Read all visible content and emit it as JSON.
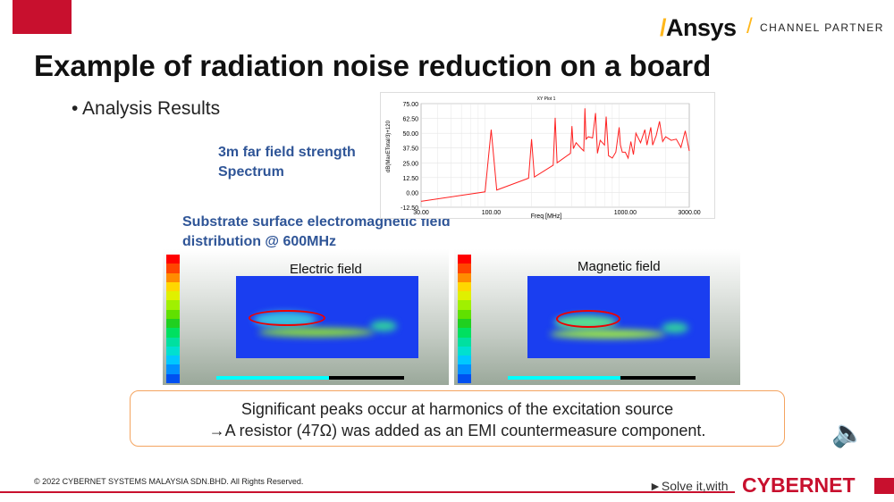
{
  "header": {
    "brand": "Ansys",
    "partner": "CHANNEL PARTNER",
    "title": "Example of radiation noise reduction on a board"
  },
  "bullet": "Analysis Results",
  "far_field_label_1": "3m far field strength",
  "far_field_label_2": "Spectrum",
  "substrate_label_1": "Substrate surface electromagnetic field",
  "substrate_label_2": "distribution @ 600MHz",
  "electric_label": "Electric field",
  "magnetic_label": "Magnetic field",
  "note": {
    "line1": "Significant peaks occur at harmonics of the excitation source",
    "line2": "→A resistor (47Ω) was added as an EMI countermeasure component."
  },
  "footer": {
    "copyright": "© 2022 CYBERNET SYSTEMS MALAYSIA SDN.BHD. All Rights Reserved.",
    "slogan": "►Solve it,with",
    "company": "CYBERNET"
  },
  "colors": {
    "accent": "#c8102e",
    "title_blue": "#2f5597",
    "ansys_yellow": "#ffb71b",
    "line": "#ff2020"
  },
  "legend_colors": [
    "#ff0000",
    "#ff4500",
    "#ff8c00",
    "#ffd700",
    "#e0f000",
    "#a0f000",
    "#60e000",
    "#20d020",
    "#00e060",
    "#00e0a0",
    "#00e0d0",
    "#00c8ff",
    "#0090ff",
    "#0050f0"
  ],
  "chart_data": {
    "type": "line",
    "title": "XY Plot 1",
    "xlabel": "Freq [MHz]",
    "ylabel": "dB(MaxETotal/3)+120",
    "xscale": "log",
    "xlim": [
      30,
      3000
    ],
    "ylim": [
      -12.5,
      75
    ],
    "xticks": [
      {
        "v": 30,
        "l": "30.00"
      },
      {
        "v": 100,
        "l": "100.00"
      },
      {
        "v": 1000,
        "l": "1000.00"
      },
      {
        "v": 3000,
        "l": "3000.00"
      }
    ],
    "yticks": [
      {
        "v": 75,
        "l": "75.00"
      },
      {
        "v": 62.5,
        "l": "62.50"
      },
      {
        "v": 50,
        "l": "50.00"
      },
      {
        "v": 37.5,
        "l": "37.50"
      },
      {
        "v": 25,
        "l": "25.00"
      },
      {
        "v": 12.5,
        "l": "12.50"
      },
      {
        "v": 0,
        "l": "0.00"
      },
      {
        "v": -12.5,
        "l": "-12.50"
      }
    ],
    "x": [
      30,
      90,
      100,
      110,
      190,
      200,
      210,
      290,
      300,
      310,
      390,
      400,
      410,
      430,
      470,
      490,
      500,
      510,
      530,
      570,
      600,
      620,
      650,
      700,
      720,
      750,
      800,
      850,
      900,
      920,
      950,
      1000,
      1050,
      1100,
      1150,
      1200,
      1300,
      1400,
      1450,
      1550,
      1600,
      1700,
      1800,
      1900,
      2000,
      2200,
      2400,
      2600,
      2800,
      3000
    ],
    "y": [
      -7.5,
      0.5,
      53,
      2,
      12,
      45,
      13,
      23,
      63,
      25,
      33,
      56,
      37,
      42,
      37,
      35,
      71,
      45,
      47,
      46,
      67,
      33,
      44,
      40,
      64,
      31,
      29,
      34,
      55,
      40,
      34,
      34,
      29,
      43,
      32,
      50,
      42,
      53,
      40,
      55,
      40,
      48,
      60,
      43,
      47,
      44,
      45,
      38,
      52,
      35
    ]
  }
}
